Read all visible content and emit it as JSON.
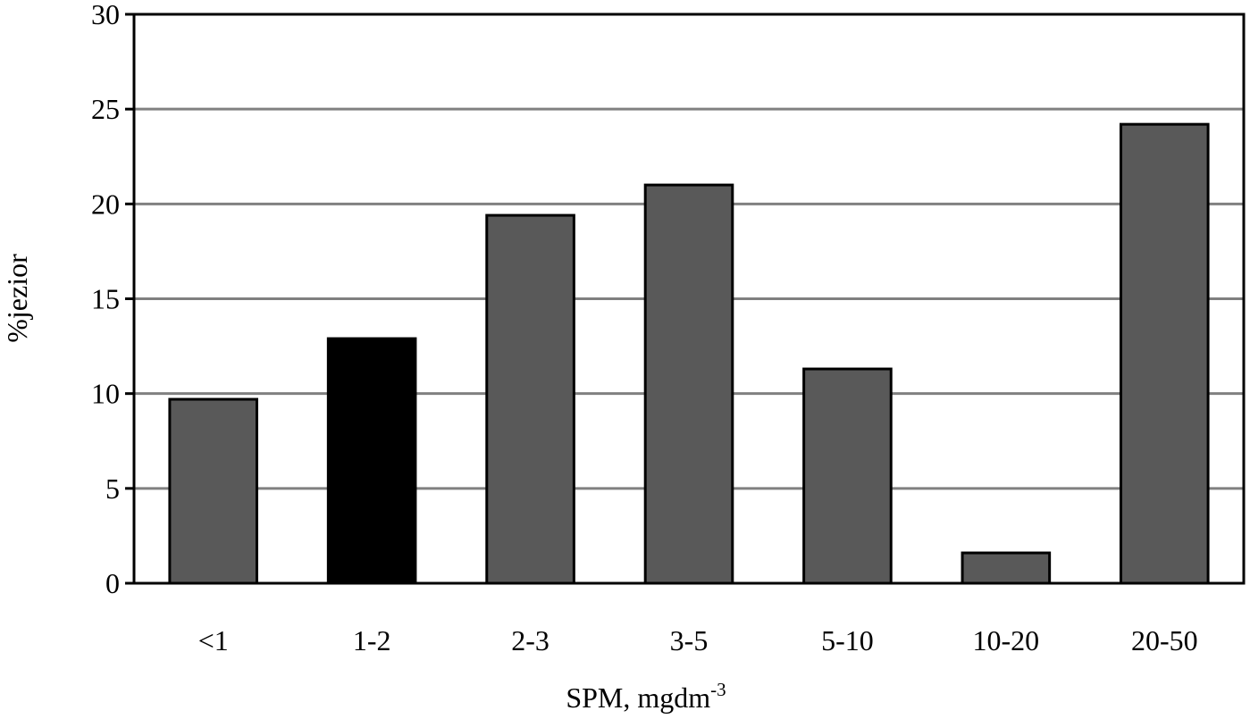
{
  "chart_data": {
    "type": "bar",
    "categories": [
      "<1",
      "1-2",
      "2-3",
      "3-5",
      "5-10",
      "10-20",
      "20-50"
    ],
    "values": [
      9.7,
      12.9,
      19.4,
      21.0,
      11.3,
      1.6,
      24.2
    ],
    "highlight_index": 1,
    "title": "",
    "xlabel": "SPM, mgdm",
    "xlabel_superscript": "-3",
    "ylabel": "%jezior",
    "ylim": [
      0,
      30
    ],
    "yticks": [
      "0",
      "5",
      "10",
      "15",
      "20",
      "25",
      "30"
    ],
    "grid": "horizontal",
    "legend": "none",
    "colors": {
      "bar": "#595959",
      "highlight_bar": "#000000",
      "bar_outline": "#000000",
      "grid": "#808080",
      "axis": "#000000"
    }
  }
}
